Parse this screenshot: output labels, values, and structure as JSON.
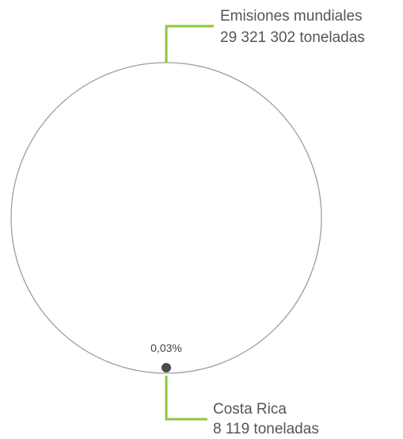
{
  "chart_data": {
    "type": "bubble-comparison",
    "series": [
      {
        "name": "Emisiones mundiales",
        "value": 29321302,
        "value_label": "29 321 302 toneladas"
      },
      {
        "name": "Costa Rica",
        "value": 8119,
        "value_label": "8 119 toneladas",
        "share_label": "0,03%"
      }
    ],
    "colors": {
      "circle_outline": "#9e9e9e",
      "small_dot": "#4a4a4a",
      "leader_line": "#8cc63f",
      "text": "#555555"
    }
  }
}
